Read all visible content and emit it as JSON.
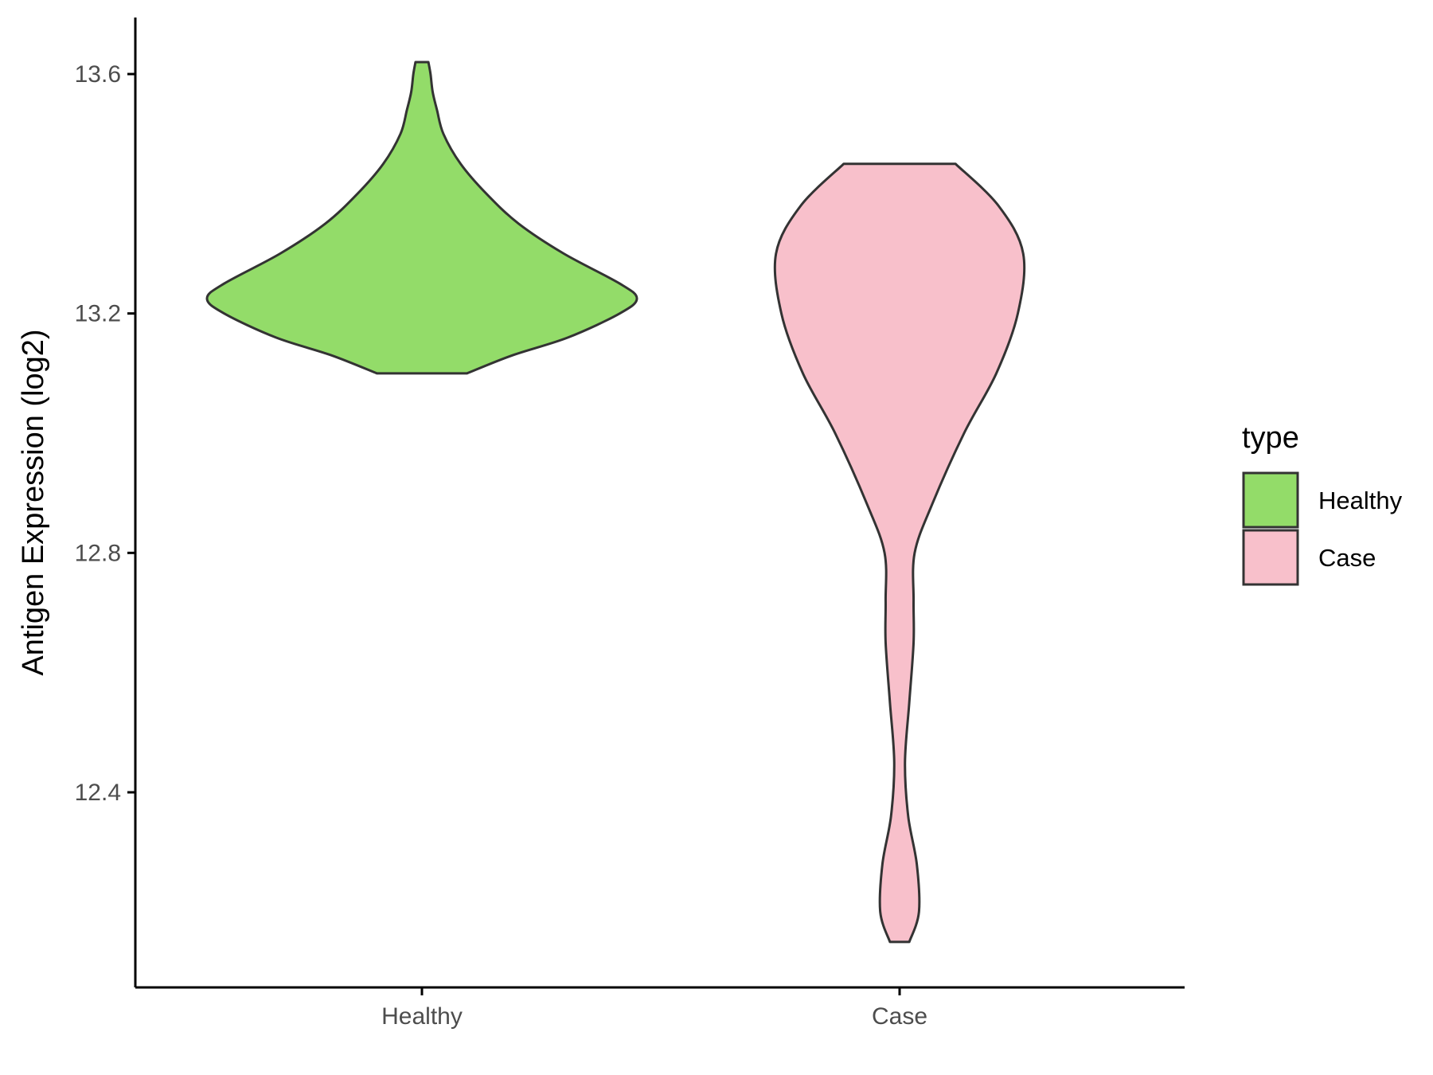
{
  "chart_data": {
    "type": "violin",
    "ylabel": "Antigen Expression (log2)",
    "xlabel": "",
    "ylim": [
      12.08,
      13.7
    ],
    "yticks": [
      12.4,
      12.8,
      13.2,
      13.6
    ],
    "ytick_labels": [
      "12.4",
      "12.8",
      "13.2",
      "13.6"
    ],
    "categories": [
      "Healthy",
      "Case"
    ],
    "grid": false,
    "legend": {
      "title": "type",
      "position": "right",
      "entries": [
        {
          "label": "Healthy",
          "color": "#93dc69"
        },
        {
          "label": "Case",
          "color": "#f8c0cb"
        }
      ]
    },
    "series": [
      {
        "name": "Healthy",
        "color": "#93dc69",
        "min": 13.1,
        "max": 13.62,
        "profile": [
          [
            13.1,
            0.21
          ],
          [
            13.13,
            0.42
          ],
          [
            13.16,
            0.68
          ],
          [
            13.2,
            0.92
          ],
          [
            13.225,
            1.0
          ],
          [
            13.25,
            0.92
          ],
          [
            13.3,
            0.66
          ],
          [
            13.35,
            0.45
          ],
          [
            13.4,
            0.3
          ],
          [
            13.45,
            0.18
          ],
          [
            13.5,
            0.1
          ],
          [
            13.54,
            0.07
          ],
          [
            13.57,
            0.05
          ],
          [
            13.6,
            0.04
          ],
          [
            13.62,
            0.03
          ]
        ]
      },
      {
        "name": "Case",
        "color": "#f8c0cb",
        "min": 12.15,
        "max": 13.45,
        "profile": [
          [
            12.15,
            0.045
          ],
          [
            12.2,
            0.09
          ],
          [
            12.28,
            0.08
          ],
          [
            12.36,
            0.04
          ],
          [
            12.45,
            0.025
          ],
          [
            12.55,
            0.045
          ],
          [
            12.65,
            0.065
          ],
          [
            12.72,
            0.065
          ],
          [
            12.8,
            0.07
          ],
          [
            12.88,
            0.15
          ],
          [
            13.0,
            0.3
          ],
          [
            13.1,
            0.45
          ],
          [
            13.2,
            0.55
          ],
          [
            13.3,
            0.575
          ],
          [
            13.38,
            0.46
          ],
          [
            13.45,
            0.26
          ]
        ]
      }
    ]
  }
}
